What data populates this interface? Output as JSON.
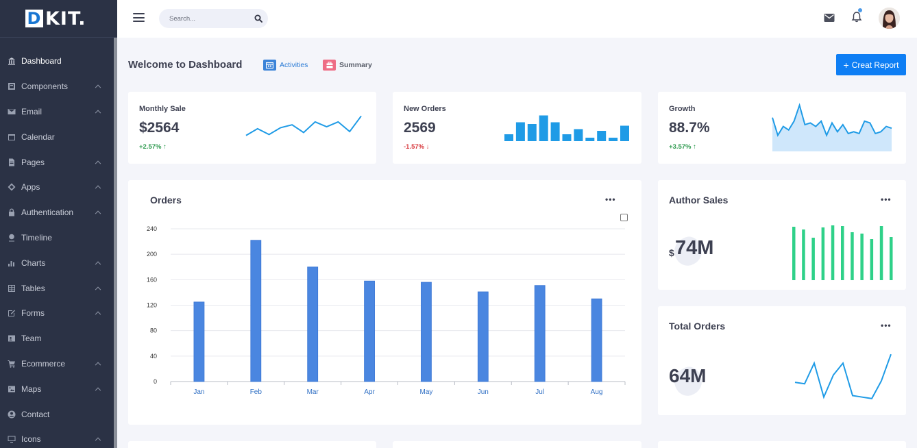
{
  "brand": {
    "logo_letter": "D",
    "logo_rest": "KIT."
  },
  "sidebar": {
    "items": [
      {
        "label": "Dashboard",
        "icon": "bank-icon",
        "active": true,
        "chevron": false
      },
      {
        "label": "Components",
        "icon": "component-icon",
        "chevron": true
      },
      {
        "label": "Email",
        "icon": "mail-icon",
        "chevron": true
      },
      {
        "label": "Calendar",
        "icon": "calendar-icon",
        "chevron": false
      },
      {
        "label": "Pages",
        "icon": "page-icon",
        "chevron": true
      },
      {
        "label": "Apps",
        "icon": "apps-icon",
        "chevron": true
      },
      {
        "label": "Authentication",
        "icon": "lock-icon",
        "chevron": true
      },
      {
        "label": "Timeline",
        "icon": "pin-icon",
        "chevron": false
      },
      {
        "label": "Charts",
        "icon": "bar-chart-icon",
        "chevron": true
      },
      {
        "label": "Tables",
        "icon": "table-icon",
        "chevron": true
      },
      {
        "label": "Forms",
        "icon": "edit-icon",
        "chevron": true
      },
      {
        "label": "Team",
        "icon": "id-card-icon",
        "chevron": false
      },
      {
        "label": "Ecommerce",
        "icon": "cart-icon",
        "chevron": true
      },
      {
        "label": "Maps",
        "icon": "map-icon",
        "chevron": true
      },
      {
        "label": "Contact",
        "icon": "user-circle-icon",
        "chevron": false
      },
      {
        "label": "Icons",
        "icon": "monitor-icon",
        "chevron": true
      }
    ]
  },
  "header": {
    "search_placeholder": "Search...",
    "has_notification": true
  },
  "page": {
    "title": "Welcome to Dashboard",
    "tabs": [
      {
        "label": "Activities",
        "icon": "calendar-icon"
      },
      {
        "label": "Summary",
        "icon": "briefcase-icon"
      }
    ],
    "report_button": "Creat Report"
  },
  "stats": [
    {
      "label": "Monthly Sale",
      "value": "$2564",
      "change": "+2.57%",
      "direction": "up",
      "spark_type": "line",
      "spark": [
        3,
        10,
        4,
        11,
        14,
        6,
        17,
        12,
        17,
        7,
        23
      ]
    },
    {
      "label": "New Orders",
      "value": "2569",
      "change": "-1.57%",
      "direction": "down",
      "spark_type": "bar",
      "spark": [
        4,
        11,
        10,
        15,
        11,
        4,
        7,
        2,
        6,
        2,
        9
      ]
    },
    {
      "label": "Growth",
      "value": "88.7%",
      "change": "+3.57%",
      "direction": "up",
      "spark_type": "area",
      "spark": [
        16,
        6,
        11,
        9,
        14,
        23,
        12,
        13,
        11,
        14,
        6,
        13,
        8,
        12,
        7,
        8,
        7,
        14,
        13,
        7,
        8,
        11,
        10
      ]
    }
  ],
  "orders": {
    "title": "Orders",
    "more": "•••"
  },
  "chart_data": {
    "type": "bar",
    "title": "Orders",
    "categories": [
      "Jan",
      "Feb",
      "Mar",
      "Apr",
      "May",
      "Jun",
      "Jul",
      "Aug"
    ],
    "values": [
      125,
      222,
      180,
      158,
      156,
      141,
      151,
      130
    ],
    "ylim": [
      0,
      240
    ],
    "yticks": [
      0,
      40,
      80,
      120,
      160,
      200,
      240
    ],
    "grid": true,
    "color": "#4a86e0"
  },
  "author_sales": {
    "title": "Author Sales",
    "more": "•••",
    "currency": "$",
    "value": "74M",
    "bars": [
      78,
      74,
      62,
      77,
      80,
      79,
      70,
      68,
      60,
      79,
      63
    ],
    "color": "#2fd189"
  },
  "total_orders": {
    "title": "Total Orders",
    "more": "•••",
    "value": "64M",
    "line": [
      12,
      11,
      25,
      2,
      17,
      25,
      3,
      2,
      1,
      13,
      31
    ]
  },
  "colors": {
    "primary": "#0e7ef4",
    "sidebar": "#2b3245",
    "spark_blue": "#1f9be6"
  }
}
